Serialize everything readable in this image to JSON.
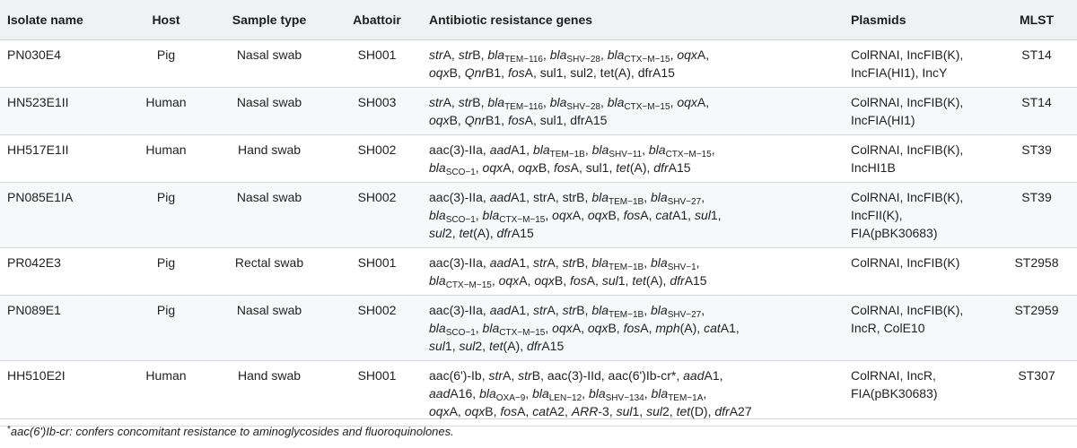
{
  "headers": {
    "isolate": "Isolate name",
    "host": "Host",
    "sample": "Sample type",
    "abattoir": "Abattoir",
    "genes": "Antibiotic resistance genes",
    "plasmids": "Plasmids",
    "mlst": "MLST"
  },
  "rows": [
    {
      "isolate": "PN030E4",
      "host": "Pig",
      "sample": "Nasal swab",
      "abattoir": "SH001",
      "plasmids_lines": [
        "ColRNAI, IncFIB(K),",
        "IncFIA(HI1), IncY"
      ],
      "mlst": "ST14",
      "genes": [
        [
          [
            "i",
            "str"
          ],
          [
            "t",
            "A, "
          ],
          [
            "i",
            "str"
          ],
          [
            "t",
            "B, "
          ],
          [
            "i",
            "bla"
          ],
          [
            "s",
            "TEM−116"
          ],
          [
            "t",
            ", "
          ],
          [
            "i",
            "bla"
          ],
          [
            "s",
            "SHV−28"
          ],
          [
            "t",
            ", "
          ],
          [
            "i",
            "bla"
          ],
          [
            "s",
            "CTX−M−15"
          ],
          [
            "t",
            ", "
          ],
          [
            "i",
            "oqx"
          ],
          [
            "t",
            "A,"
          ]
        ],
        [
          [
            "i",
            "oqx"
          ],
          [
            "t",
            "B, "
          ],
          [
            "i",
            "Qnr"
          ],
          [
            "t",
            "B1, "
          ],
          [
            "i",
            "fos"
          ],
          [
            "t",
            "A, sul1, sul2, tet(A), dfrA15"
          ]
        ]
      ]
    },
    {
      "isolate": "HN523E1II",
      "host": "Human",
      "sample": "Nasal swab",
      "abattoir": "SH003",
      "plasmids_lines": [
        "ColRNAI, IncFIB(K),",
        "IncFIA(HI1)"
      ],
      "mlst": "ST14",
      "genes": [
        [
          [
            "i",
            "str"
          ],
          [
            "t",
            "A, "
          ],
          [
            "i",
            "str"
          ],
          [
            "t",
            "B, "
          ],
          [
            "i",
            "bla"
          ],
          [
            "s",
            "TEM−116"
          ],
          [
            "t",
            ", "
          ],
          [
            "i",
            "bla"
          ],
          [
            "s",
            "SHV−28"
          ],
          [
            "t",
            ", "
          ],
          [
            "i",
            "bla"
          ],
          [
            "s",
            "CTX−M−15"
          ],
          [
            "t",
            ", "
          ],
          [
            "i",
            "oqx"
          ],
          [
            "t",
            "A,"
          ]
        ],
        [
          [
            "i",
            "oqx"
          ],
          [
            "t",
            "B, "
          ],
          [
            "i",
            "Qnr"
          ],
          [
            "t",
            "B1, "
          ],
          [
            "i",
            "fos"
          ],
          [
            "t",
            "A, sul1, dfrA15"
          ]
        ]
      ]
    },
    {
      "isolate": "HH517E1II",
      "host": "Human",
      "sample": "Hand swab",
      "abattoir": "SH002",
      "plasmids_lines": [
        "ColRNAI, IncFIB(K),",
        "IncHI1B"
      ],
      "mlst": "ST39",
      "genes": [
        [
          [
            "t",
            "aac(3)-IIa, "
          ],
          [
            "i",
            "aad"
          ],
          [
            "t",
            "A1, "
          ],
          [
            "i",
            "bla"
          ],
          [
            "s",
            "TEM−1B"
          ],
          [
            "t",
            ", "
          ],
          [
            "i",
            "bla"
          ],
          [
            "s",
            "SHV−11"
          ],
          [
            "t",
            ", "
          ],
          [
            "i",
            "bla"
          ],
          [
            "s",
            "CTX−M−15"
          ],
          [
            "t",
            ","
          ]
        ],
        [
          [
            "i",
            "bla"
          ],
          [
            "s",
            "SCO−1"
          ],
          [
            "t",
            ", "
          ],
          [
            "i",
            "oqx"
          ],
          [
            "t",
            "A, "
          ],
          [
            "i",
            "oqx"
          ],
          [
            "t",
            "B, "
          ],
          [
            "i",
            "fos"
          ],
          [
            "t",
            "A, sul1, "
          ],
          [
            "i",
            "tet"
          ],
          [
            "t",
            "(A), "
          ],
          [
            "i",
            "dfr"
          ],
          [
            "t",
            "A15"
          ]
        ]
      ]
    },
    {
      "isolate": "PN085E1IA",
      "host": "Pig",
      "sample": "Nasal swab",
      "abattoir": "SH002",
      "plasmids_lines": [
        "ColRNAI, IncFIB(K),",
        "IncFII(K),",
        "FIA(pBK30683)"
      ],
      "mlst": "ST39",
      "genes": [
        [
          [
            "t",
            "aac(3)-IIa, "
          ],
          [
            "i",
            "aad"
          ],
          [
            "t",
            "A1, strA, strB, "
          ],
          [
            "i",
            "bla"
          ],
          [
            "s",
            "TEM−1B"
          ],
          [
            "t",
            ", "
          ],
          [
            "i",
            "bla"
          ],
          [
            "s",
            "SHV−27"
          ],
          [
            "t",
            ","
          ]
        ],
        [
          [
            "i",
            "bla"
          ],
          [
            "s",
            "SCO−1"
          ],
          [
            "t",
            ", "
          ],
          [
            "i",
            "bla"
          ],
          [
            "s",
            "CTX−M−15"
          ],
          [
            "t",
            ", "
          ],
          [
            "i",
            "oqx"
          ],
          [
            "t",
            "A, "
          ],
          [
            "i",
            "oqx"
          ],
          [
            "t",
            "B, "
          ],
          [
            "i",
            "fos"
          ],
          [
            "t",
            "A, "
          ],
          [
            "i",
            "cat"
          ],
          [
            "t",
            "A1, "
          ],
          [
            "i",
            "sul"
          ],
          [
            "t",
            "1,"
          ]
        ],
        [
          [
            "i",
            "sul"
          ],
          [
            "t",
            "2, "
          ],
          [
            "i",
            "tet"
          ],
          [
            "t",
            "(A), "
          ],
          [
            "i",
            "dfr"
          ],
          [
            "t",
            "A15"
          ]
        ]
      ]
    },
    {
      "isolate": "PR042E3",
      "host": "Pig",
      "sample": "Rectal swab",
      "abattoir": "SH001",
      "plasmids_lines": [
        "ColRNAI, IncFIB(K)"
      ],
      "mlst": "ST2958",
      "genes": [
        [
          [
            "t",
            "aac(3)-IIa, "
          ],
          [
            "i",
            "aad"
          ],
          [
            "t",
            "A1, "
          ],
          [
            "i",
            "str"
          ],
          [
            "t",
            "A, "
          ],
          [
            "i",
            "str"
          ],
          [
            "t",
            "B, "
          ],
          [
            "i",
            "bla"
          ],
          [
            "s",
            "TEM−1B"
          ],
          [
            "t",
            ", "
          ],
          [
            "i",
            "bla"
          ],
          [
            "s",
            "SHV−1"
          ],
          [
            "t",
            ","
          ]
        ],
        [
          [
            "i",
            "bla"
          ],
          [
            "s",
            "CTX−M−15"
          ],
          [
            "t",
            ", "
          ],
          [
            "i",
            "oqx"
          ],
          [
            "t",
            "A, "
          ],
          [
            "i",
            "oqx"
          ],
          [
            "t",
            "B, "
          ],
          [
            "i",
            "fos"
          ],
          [
            "t",
            "A, "
          ],
          [
            "i",
            "sul"
          ],
          [
            "t",
            "1, "
          ],
          [
            "i",
            "tet"
          ],
          [
            "t",
            "(A), "
          ],
          [
            "i",
            "dfr"
          ],
          [
            "t",
            "A15"
          ]
        ]
      ]
    },
    {
      "isolate": "PN089E1",
      "host": "Pig",
      "sample": "Nasal swab",
      "abattoir": "SH002",
      "plasmids_lines": [
        "ColRNAI, IncFIB(K),",
        "IncR, ColE10"
      ],
      "mlst": "ST2959",
      "genes": [
        [
          [
            "t",
            "aac(3)-IIa, "
          ],
          [
            "i",
            "aad"
          ],
          [
            "t",
            "A1, "
          ],
          [
            "i",
            "str"
          ],
          [
            "t",
            "A, "
          ],
          [
            "i",
            "str"
          ],
          [
            "t",
            "B, "
          ],
          [
            "i",
            "bla"
          ],
          [
            "s",
            "TEM−1B"
          ],
          [
            "t",
            ", "
          ],
          [
            "i",
            "bla"
          ],
          [
            "s",
            "SHV−27"
          ],
          [
            "t",
            ","
          ]
        ],
        [
          [
            "i",
            "bla"
          ],
          [
            "s",
            "SCO−1"
          ],
          [
            "t",
            ", "
          ],
          [
            "i",
            "bla"
          ],
          [
            "s",
            "CTX−M−15"
          ],
          [
            "t",
            ", "
          ],
          [
            "i",
            "oqx"
          ],
          [
            "t",
            "A, "
          ],
          [
            "i",
            "oqx"
          ],
          [
            "t",
            "B, "
          ],
          [
            "i",
            "fos"
          ],
          [
            "t",
            "A, "
          ],
          [
            "i",
            "mph"
          ],
          [
            "t",
            "(A), "
          ],
          [
            "i",
            "cat"
          ],
          [
            "t",
            "A1,"
          ]
        ],
        [
          [
            "i",
            "sul"
          ],
          [
            "t",
            "1, "
          ],
          [
            "i",
            "sul"
          ],
          [
            "t",
            "2, "
          ],
          [
            "i",
            "tet"
          ],
          [
            "t",
            "(A), "
          ],
          [
            "i",
            "dfr"
          ],
          [
            "t",
            "A15"
          ]
        ]
      ]
    },
    {
      "isolate": "HH510E2I",
      "host": "Human",
      "sample": "Hand swab",
      "abattoir": "SH001",
      "plasmids_lines": [
        "ColRNAI, IncR,",
        "FIA(pBK30683)"
      ],
      "mlst": "ST307",
      "genes": [
        [
          [
            "t",
            "aac(6')-Ib, "
          ],
          [
            "i",
            "str"
          ],
          [
            "t",
            "A, "
          ],
          [
            "i",
            "str"
          ],
          [
            "t",
            "B, aac(3)-IId, aac(6')Ib-cr*, "
          ],
          [
            "i",
            "aad"
          ],
          [
            "t",
            "A1,"
          ]
        ],
        [
          [
            "i",
            "aad"
          ],
          [
            "t",
            "A16, "
          ],
          [
            "i",
            "bla"
          ],
          [
            "s",
            "OXA−9"
          ],
          [
            "t",
            ", "
          ],
          [
            "i",
            "bla"
          ],
          [
            "s",
            "LEN−12"
          ],
          [
            "t",
            ", "
          ],
          [
            "i",
            "bla"
          ],
          [
            "s",
            "SHV−134"
          ],
          [
            "t",
            ", "
          ],
          [
            "i",
            "bla"
          ],
          [
            "s",
            "TEM−1A"
          ],
          [
            "t",
            ","
          ]
        ],
        [
          [
            "i",
            "oqx"
          ],
          [
            "t",
            "A, "
          ],
          [
            "i",
            "oqx"
          ],
          [
            "t",
            "B, "
          ],
          [
            "i",
            "fos"
          ],
          [
            "t",
            "A, "
          ],
          [
            "i",
            "cat"
          ],
          [
            "t",
            "A2, "
          ],
          [
            "i",
            "ARR"
          ],
          [
            "t",
            "-3, "
          ],
          [
            "i",
            "sul"
          ],
          [
            "t",
            "1, "
          ],
          [
            "i",
            "sul"
          ],
          [
            "t",
            "2, "
          ],
          [
            "i",
            "tet"
          ],
          [
            "t",
            "(D), "
          ],
          [
            "i",
            "dfr"
          ],
          [
            "t",
            "A27"
          ]
        ]
      ]
    }
  ],
  "footnote": {
    "mark": "*",
    "text": "aac(6')Ib-cr: confers concomitant resistance to aminoglycosides and fluoroquinolones."
  }
}
